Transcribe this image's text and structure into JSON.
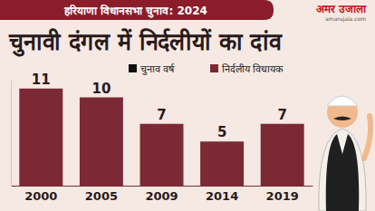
{
  "chart_data": {
    "type": "bar",
    "subtitle": "हरियाणा विधानसभा चुनाव: 2024",
    "title": "चुनावी दंगल में निर्दलीयों का दांव",
    "annotations": [
      "अमर उजाला",
      "amarujala.com"
    ],
    "xlabel": "चुनाव वर्ष",
    "categories": [
      "2000",
      "2005",
      "2009",
      "2014",
      "2019"
    ],
    "series": [
      {
        "name": "निर्दलीय विधायक",
        "color": "#7b2a35",
        "values": [
          11,
          10,
          7,
          5,
          7
        ]
      }
    ],
    "ylim": [
      0,
      12
    ],
    "data_labels": true,
    "tick_labels": "x",
    "legend": "top-right",
    "grid": false
  }
}
